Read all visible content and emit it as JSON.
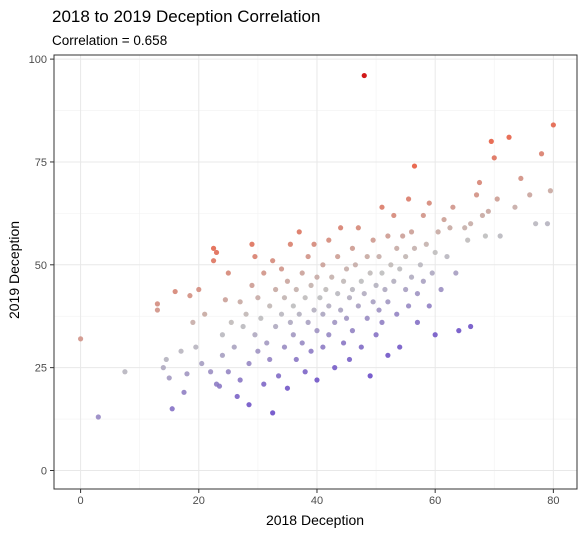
{
  "chart_data": {
    "type": "scatter",
    "title": "2018 to 2019 Deception Correlation",
    "subtitle": "Correlation = 0.658",
    "xlabel": "2018 Deception",
    "ylabel": "2019 Deception",
    "xlim": [
      -4.5,
      84
    ],
    "ylim": [
      -4.5,
      101
    ],
    "xticks": [
      0,
      20,
      40,
      60,
      80
    ],
    "yticks": [
      0,
      25,
      50,
      75,
      100
    ],
    "grid": true,
    "legend": "none",
    "colors": {
      "above": "#e8583c",
      "neutral": "#bebebe",
      "below": "#6a4cc8",
      "outlier": "#cc0000"
    },
    "points": [
      [
        0,
        32
      ],
      [
        3,
        13
      ],
      [
        7.5,
        24
      ],
      [
        13,
        40.5
      ],
      [
        13,
        39
      ],
      [
        14,
        25
      ],
      [
        14.5,
        27
      ],
      [
        15,
        22.5
      ],
      [
        15.5,
        15
      ],
      [
        16,
        43.5
      ],
      [
        17,
        29
      ],
      [
        17.5,
        19
      ],
      [
        18,
        23.5
      ],
      [
        18.5,
        42.5
      ],
      [
        19,
        36
      ],
      [
        19.5,
        30
      ],
      [
        20,
        44
      ],
      [
        20.5,
        26
      ],
      [
        21,
        38
      ],
      [
        22,
        24
      ],
      [
        22.5,
        54
      ],
      [
        22.5,
        51
      ],
      [
        23,
        53
      ],
      [
        23,
        21
      ],
      [
        23.5,
        20.5
      ],
      [
        24,
        28
      ],
      [
        24,
        33
      ],
      [
        24.5,
        41.5
      ],
      [
        25,
        48
      ],
      [
        25,
        24
      ],
      [
        25.5,
        36
      ],
      [
        26,
        30
      ],
      [
        26.5,
        18
      ],
      [
        27,
        41
      ],
      [
        27,
        22
      ],
      [
        27.5,
        35
      ],
      [
        28,
        38
      ],
      [
        28.5,
        26
      ],
      [
        28.5,
        16
      ],
      [
        29,
        45
      ],
      [
        29,
        55
      ],
      [
        29.5,
        52
      ],
      [
        29.5,
        33
      ],
      [
        30,
        42
      ],
      [
        30,
        29
      ],
      [
        30.5,
        37
      ],
      [
        31,
        48
      ],
      [
        31,
        21
      ],
      [
        31.5,
        31
      ],
      [
        32,
        40
      ],
      [
        32,
        27
      ],
      [
        32.5,
        51
      ],
      [
        32.5,
        14
      ],
      [
        33,
        44
      ],
      [
        33,
        35
      ],
      [
        33.5,
        23
      ],
      [
        34,
        49
      ],
      [
        34,
        38
      ],
      [
        34.5,
        42
      ],
      [
        34.5,
        30
      ],
      [
        35,
        46
      ],
      [
        35,
        20
      ],
      [
        35.5,
        55
      ],
      [
        35.5,
        36
      ],
      [
        36,
        40
      ],
      [
        36,
        33
      ],
      [
        36.5,
        44
      ],
      [
        36.5,
        27
      ],
      [
        37,
        58
      ],
      [
        37,
        38
      ],
      [
        37.5,
        48
      ],
      [
        37.5,
        31
      ],
      [
        38,
        42
      ],
      [
        38,
        24
      ],
      [
        38.5,
        52
      ],
      [
        38.5,
        36
      ],
      [
        39,
        45
      ],
      [
        39,
        29
      ],
      [
        39.5,
        39
      ],
      [
        39.5,
        55
      ],
      [
        40,
        47
      ],
      [
        40,
        34
      ],
      [
        40,
        22
      ],
      [
        40.5,
        42
      ],
      [
        41,
        50
      ],
      [
        41,
        38
      ],
      [
        41,
        30
      ],
      [
        41.5,
        44
      ],
      [
        42,
        56
      ],
      [
        42,
        40
      ],
      [
        42,
        33
      ],
      [
        42.5,
        47
      ],
      [
        43,
        36
      ],
      [
        43,
        25
      ],
      [
        43.5,
        52
      ],
      [
        43.5,
        43
      ],
      [
        44,
        39
      ],
      [
        44,
        59
      ],
      [
        44.5,
        46
      ],
      [
        44.5,
        31
      ],
      [
        45,
        49
      ],
      [
        45,
        37
      ],
      [
        45.5,
        42
      ],
      [
        45.5,
        27
      ],
      [
        46,
        54
      ],
      [
        46,
        44
      ],
      [
        46,
        34
      ],
      [
        46.5,
        50
      ],
      [
        47,
        40
      ],
      [
        47,
        59
      ],
      [
        47.5,
        46
      ],
      [
        47.5,
        30
      ],
      [
        48,
        43
      ],
      [
        48,
        96
      ],
      [
        48.5,
        52
      ],
      [
        48.5,
        37
      ],
      [
        49,
        48
      ],
      [
        49,
        23
      ],
      [
        49.5,
        41
      ],
      [
        49.5,
        56
      ],
      [
        50,
        45
      ],
      [
        50,
        33
      ],
      [
        50.5,
        52
      ],
      [
        50.5,
        39
      ],
      [
        51,
        64
      ],
      [
        51,
        48
      ],
      [
        51,
        36
      ],
      [
        51.5,
        44
      ],
      [
        52,
        57
      ],
      [
        52,
        41
      ],
      [
        52,
        28
      ],
      [
        52.5,
        50
      ],
      [
        53,
        46
      ],
      [
        53,
        62
      ],
      [
        53.5,
        54
      ],
      [
        53.5,
        38
      ],
      [
        54,
        49
      ],
      [
        54,
        30
      ],
      [
        54.5,
        57
      ],
      [
        55,
        44
      ],
      [
        55,
        52
      ],
      [
        55.5,
        66
      ],
      [
        55.5,
        40
      ],
      [
        56,
        47
      ],
      [
        56,
        58
      ],
      [
        56.5,
        74
      ],
      [
        56.5,
        54
      ],
      [
        57,
        43
      ],
      [
        57,
        36
      ],
      [
        57.5,
        50
      ],
      [
        58,
        62
      ],
      [
        58,
        46
      ],
      [
        58.5,
        55
      ],
      [
        59,
        40
      ],
      [
        59,
        65
      ],
      [
        59.5,
        48
      ],
      [
        60,
        53
      ],
      [
        60,
        33
      ],
      [
        60.5,
        58
      ],
      [
        61,
        44
      ],
      [
        61.5,
        61
      ],
      [
        62,
        52
      ],
      [
        62.5,
        59
      ],
      [
        63,
        64
      ],
      [
        63.5,
        48
      ],
      [
        64,
        34
      ],
      [
        65,
        59
      ],
      [
        65.5,
        56
      ],
      [
        66,
        35
      ],
      [
        66,
        60
      ],
      [
        67,
        67
      ],
      [
        67.5,
        70
      ],
      [
        68,
        62
      ],
      [
        68.5,
        57
      ],
      [
        69,
        63
      ],
      [
        69.5,
        80
      ],
      [
        70,
        76
      ],
      [
        70.5,
        66
      ],
      [
        71,
        57
      ],
      [
        72.5,
        81
      ],
      [
        73.5,
        64
      ],
      [
        74.5,
        71
      ],
      [
        76,
        67
      ],
      [
        77,
        60
      ],
      [
        78,
        77
      ],
      [
        79,
        60
      ],
      [
        79.5,
        68
      ],
      [
        80,
        84
      ]
    ]
  }
}
